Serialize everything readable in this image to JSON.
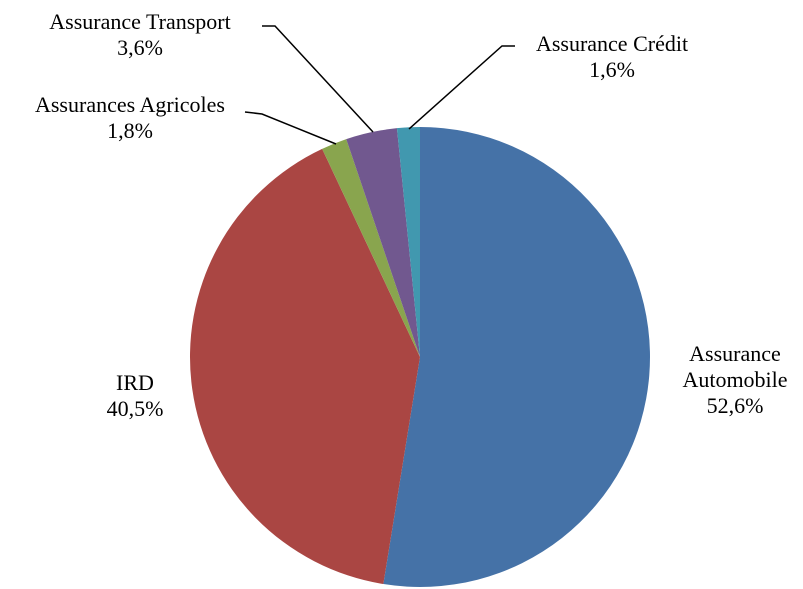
{
  "chart_data": {
    "type": "pie",
    "categories": [
      "Assurance Automobile",
      "IRD",
      "Assurances Agricoles",
      "Assurance Transport",
      "Assurance Crédit"
    ],
    "values": [
      52.6,
      40.5,
      1.8,
      3.6,
      1.6
    ],
    "value_labels": [
      "52,6%",
      "40,5%",
      "1,8%",
      "3,6%",
      "1,6%"
    ],
    "colors": [
      "#4572a7",
      "#aa4643",
      "#89a54e",
      "#71588f",
      "#4198af"
    ]
  }
}
